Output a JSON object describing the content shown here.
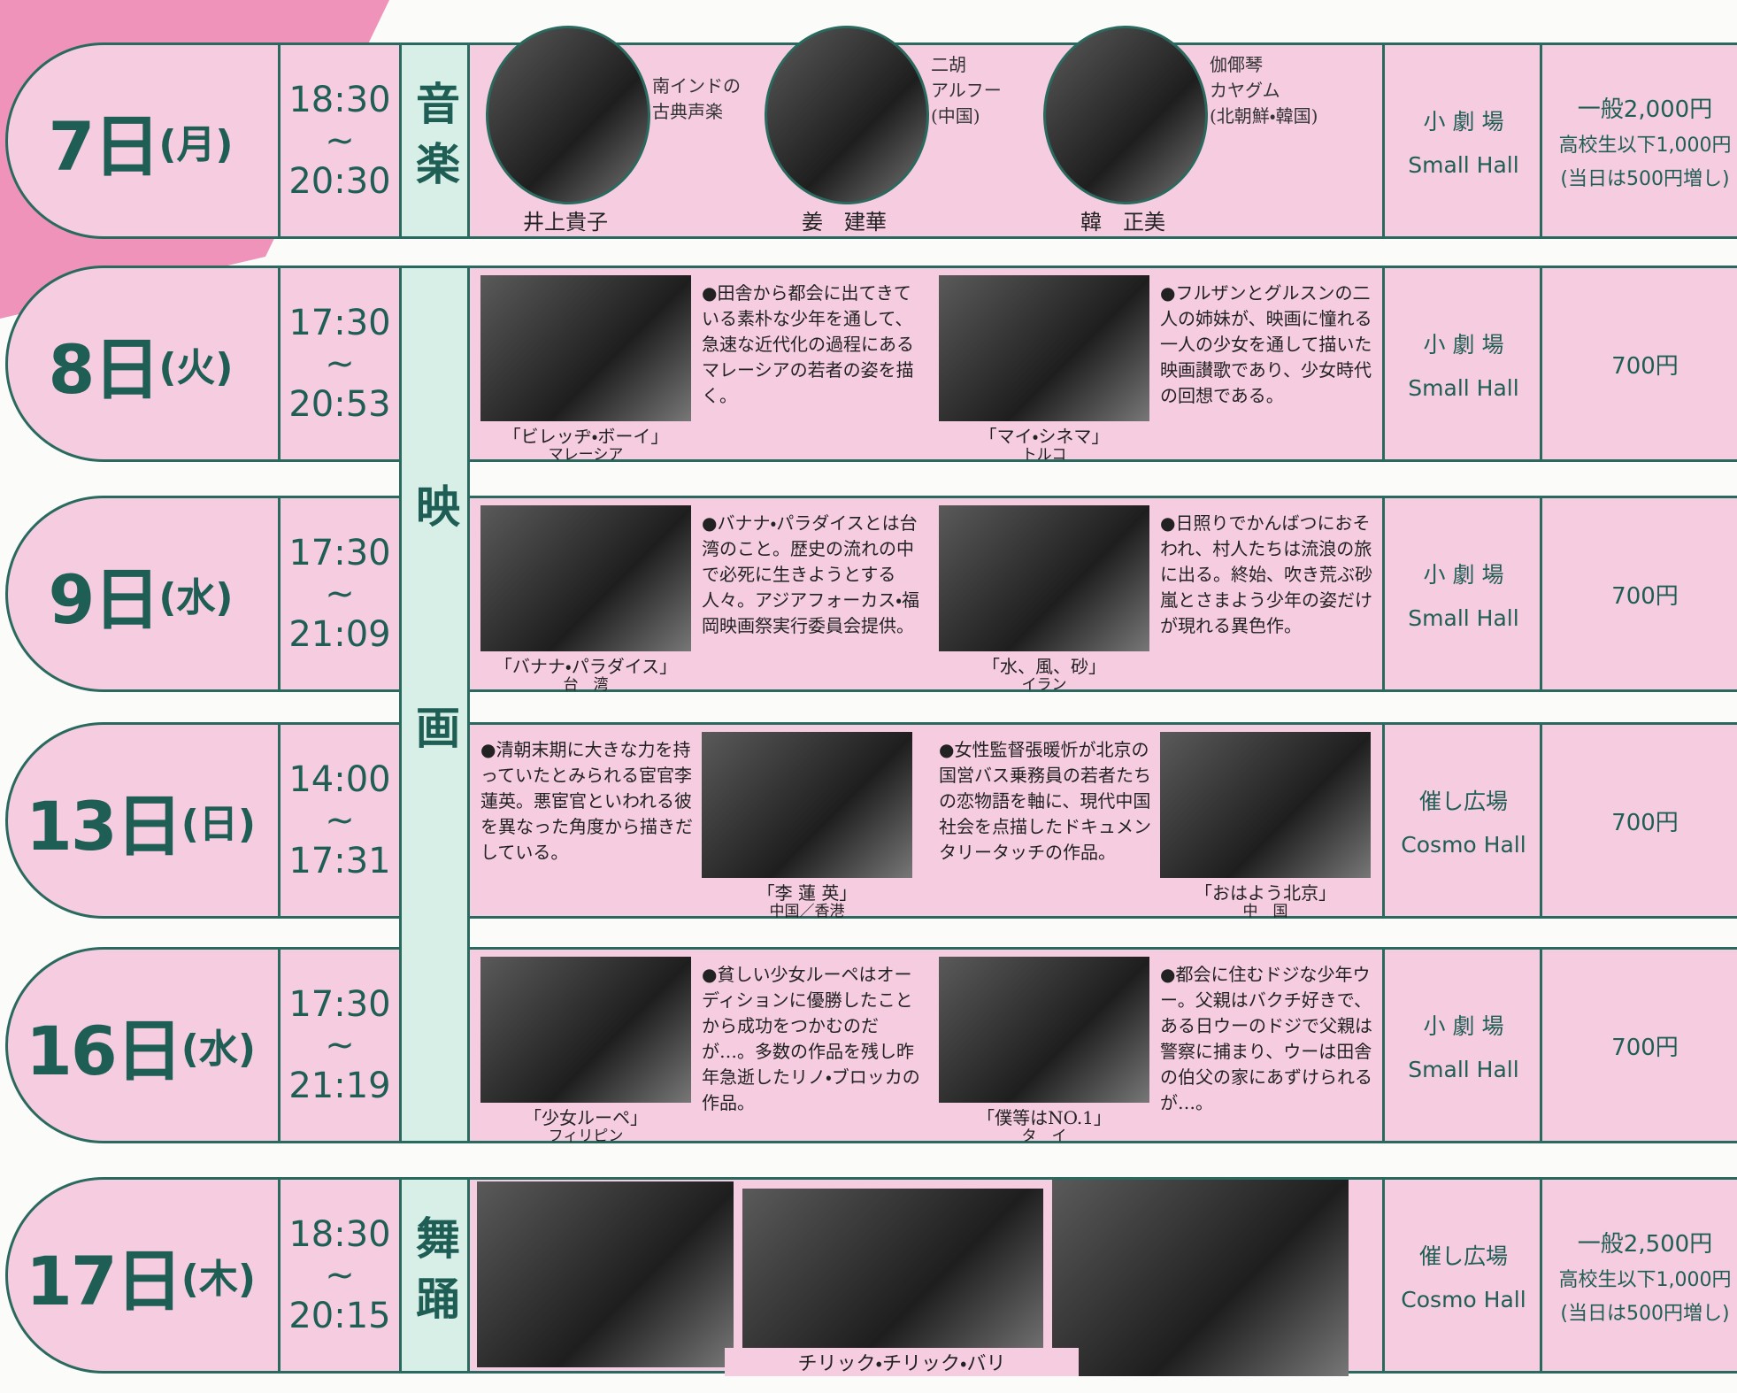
{
  "genres": [
    {
      "label": "音楽"
    },
    {
      "label": "映画"
    },
    {
      "label": "舞踊"
    }
  ],
  "rows": [
    {
      "date": "7日",
      "weekday": "(月)",
      "start": "18:30",
      "separator": "~",
      "end": "20:30",
      "content": {
        "performers": [
          {
            "name": "井上貴子",
            "description": [
              "南インドの",
              "古典声楽"
            ]
          },
          {
            "name": "姜　建華",
            "description": [
              "二胡",
              "アルフー",
              "(中国)"
            ]
          },
          {
            "name": "韓　正美",
            "description": [
              "伽倻琴",
              "カヤグム",
              "(北朝鮮・韓国)"
            ]
          }
        ]
      },
      "venue": {
        "ja": "小 劇 場",
        "en": "Small Hall"
      },
      "price": [
        "一般2,000円",
        "高校生以下1,000円",
        "(当日は500円増し)"
      ]
    },
    {
      "date": "8日",
      "weekday": "(火)",
      "start": "17:30",
      "separator": "~",
      "end": "20:53",
      "content": {
        "films": [
          {
            "title": "「ビレッヂ・ボーイ」",
            "country": "マレーシア",
            "description": "●田舎から都会に出てきている素朴な少年を通して、急速な近代化の過程にあるマレーシアの若者の姿を描く。"
          },
          {
            "title": "「マイ・シネマ」",
            "country": "トルコ",
            "description": "●フルザンとグルスンの二人の姉妹が、映画に憧れる一人の少女を通して描いた映画讃歌であり、少女時代の回想である。"
          }
        ]
      },
      "venue": {
        "ja": "小 劇 場",
        "en": "Small Hall"
      },
      "price": [
        "700円"
      ]
    },
    {
      "date": "9日",
      "weekday": "(水)",
      "start": "17:30",
      "separator": "~",
      "end": "21:09",
      "content": {
        "films": [
          {
            "title": "「バナナ・パラダイス」",
            "country": "台　湾",
            "description": "●バナナ・パラダイスとは台湾のこと。歴史の流れの中で必死に生きようとする人々。アジアフォーカス・福岡映画祭実行委員会提供。"
          },
          {
            "title": "「水、風、砂」",
            "country": "イラン",
            "description": "●日照りでかんばつにおそわれ、村人たちは流浪の旅に出る。終始、吹き荒ぶ砂嵐とさまよう少年の姿だけが現れる異色作。"
          }
        ]
      },
      "venue": {
        "ja": "小 劇 場",
        "en": "Small Hall"
      },
      "price": [
        "700円"
      ]
    },
    {
      "date": "13日",
      "weekday": "(日)",
      "start": "14:00",
      "separator": "~",
      "end": "17:31",
      "content": {
        "films": [
          {
            "title": "「李 蓮 英」",
            "country": "中国／香港",
            "description": "●清朝末期に大きな力を持っていたとみられる宦官李蓮英。悪宦官といわれる彼を異なった角度から描きだしている。"
          },
          {
            "title": "「おはよう北京」",
            "country": "中　国",
            "description": "●女性監督張暖忻が北京の国営バス乗務員の若者たちの恋物語を軸に、現代中国社会を点描したドキュメンタリータッチの作品。"
          }
        ]
      },
      "venue": {
        "ja": "催し広場",
        "en": "Cosmo Hall"
      },
      "price": [
        "700円"
      ]
    },
    {
      "date": "16日",
      "weekday": "(水)",
      "start": "17:30",
      "separator": "~",
      "end": "21:19",
      "content": {
        "films": [
          {
            "title": "「少女ルーペ」",
            "country": "フィリピン",
            "description": "●貧しい少女ルーペはオーディションに優勝したことから成功をつかむのだが…。多数の作品を残し昨年急逝したリノ・ブロッカの作品。"
          },
          {
            "title": "「僕等はNO.1」",
            "country": "タ　イ",
            "description": "●都会に住むドジな少年ウー。父親はバクチ好きで、ある日ウーのドジで父親は警察に捕まり、ウーは田舎の伯父の家にあずけられるが…。"
          }
        ]
      },
      "venue": {
        "ja": "小 劇 場",
        "en": "Small Hall"
      },
      "price": [
        "700円"
      ]
    },
    {
      "date": "17日",
      "weekday": "(木)",
      "start": "18:30",
      "separator": "~",
      "end": "20:15",
      "content": {
        "caption": "チリック・チリック・バリ"
      },
      "venue": {
        "ja": "催し広場",
        "en": "Cosmo Hall"
      },
      "price": [
        "一般2,500円",
        "高校生以下1,000円",
        "(当日は500円増し)"
      ]
    }
  ]
}
